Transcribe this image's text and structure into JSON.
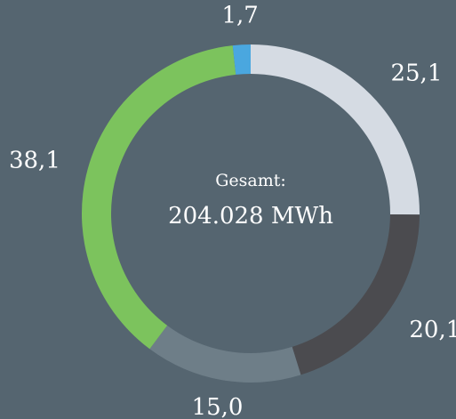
{
  "chart_data": {
    "type": "donut",
    "center_label": "Gesamt:",
    "center_value": "204.028 MWh",
    "categories": [
      null,
      null,
      null,
      null,
      null
    ],
    "values": [
      25.1,
      20.1,
      15.0,
      38.1,
      1.7
    ],
    "value_labels": [
      "25,1",
      "20,1",
      "15,0",
      "38,1",
      "1,7"
    ],
    "colors": [
      "#d5dbe3",
      "#4b4b4f",
      "#6e7e88",
      "#7cc35d",
      "#4aa7df"
    ]
  }
}
